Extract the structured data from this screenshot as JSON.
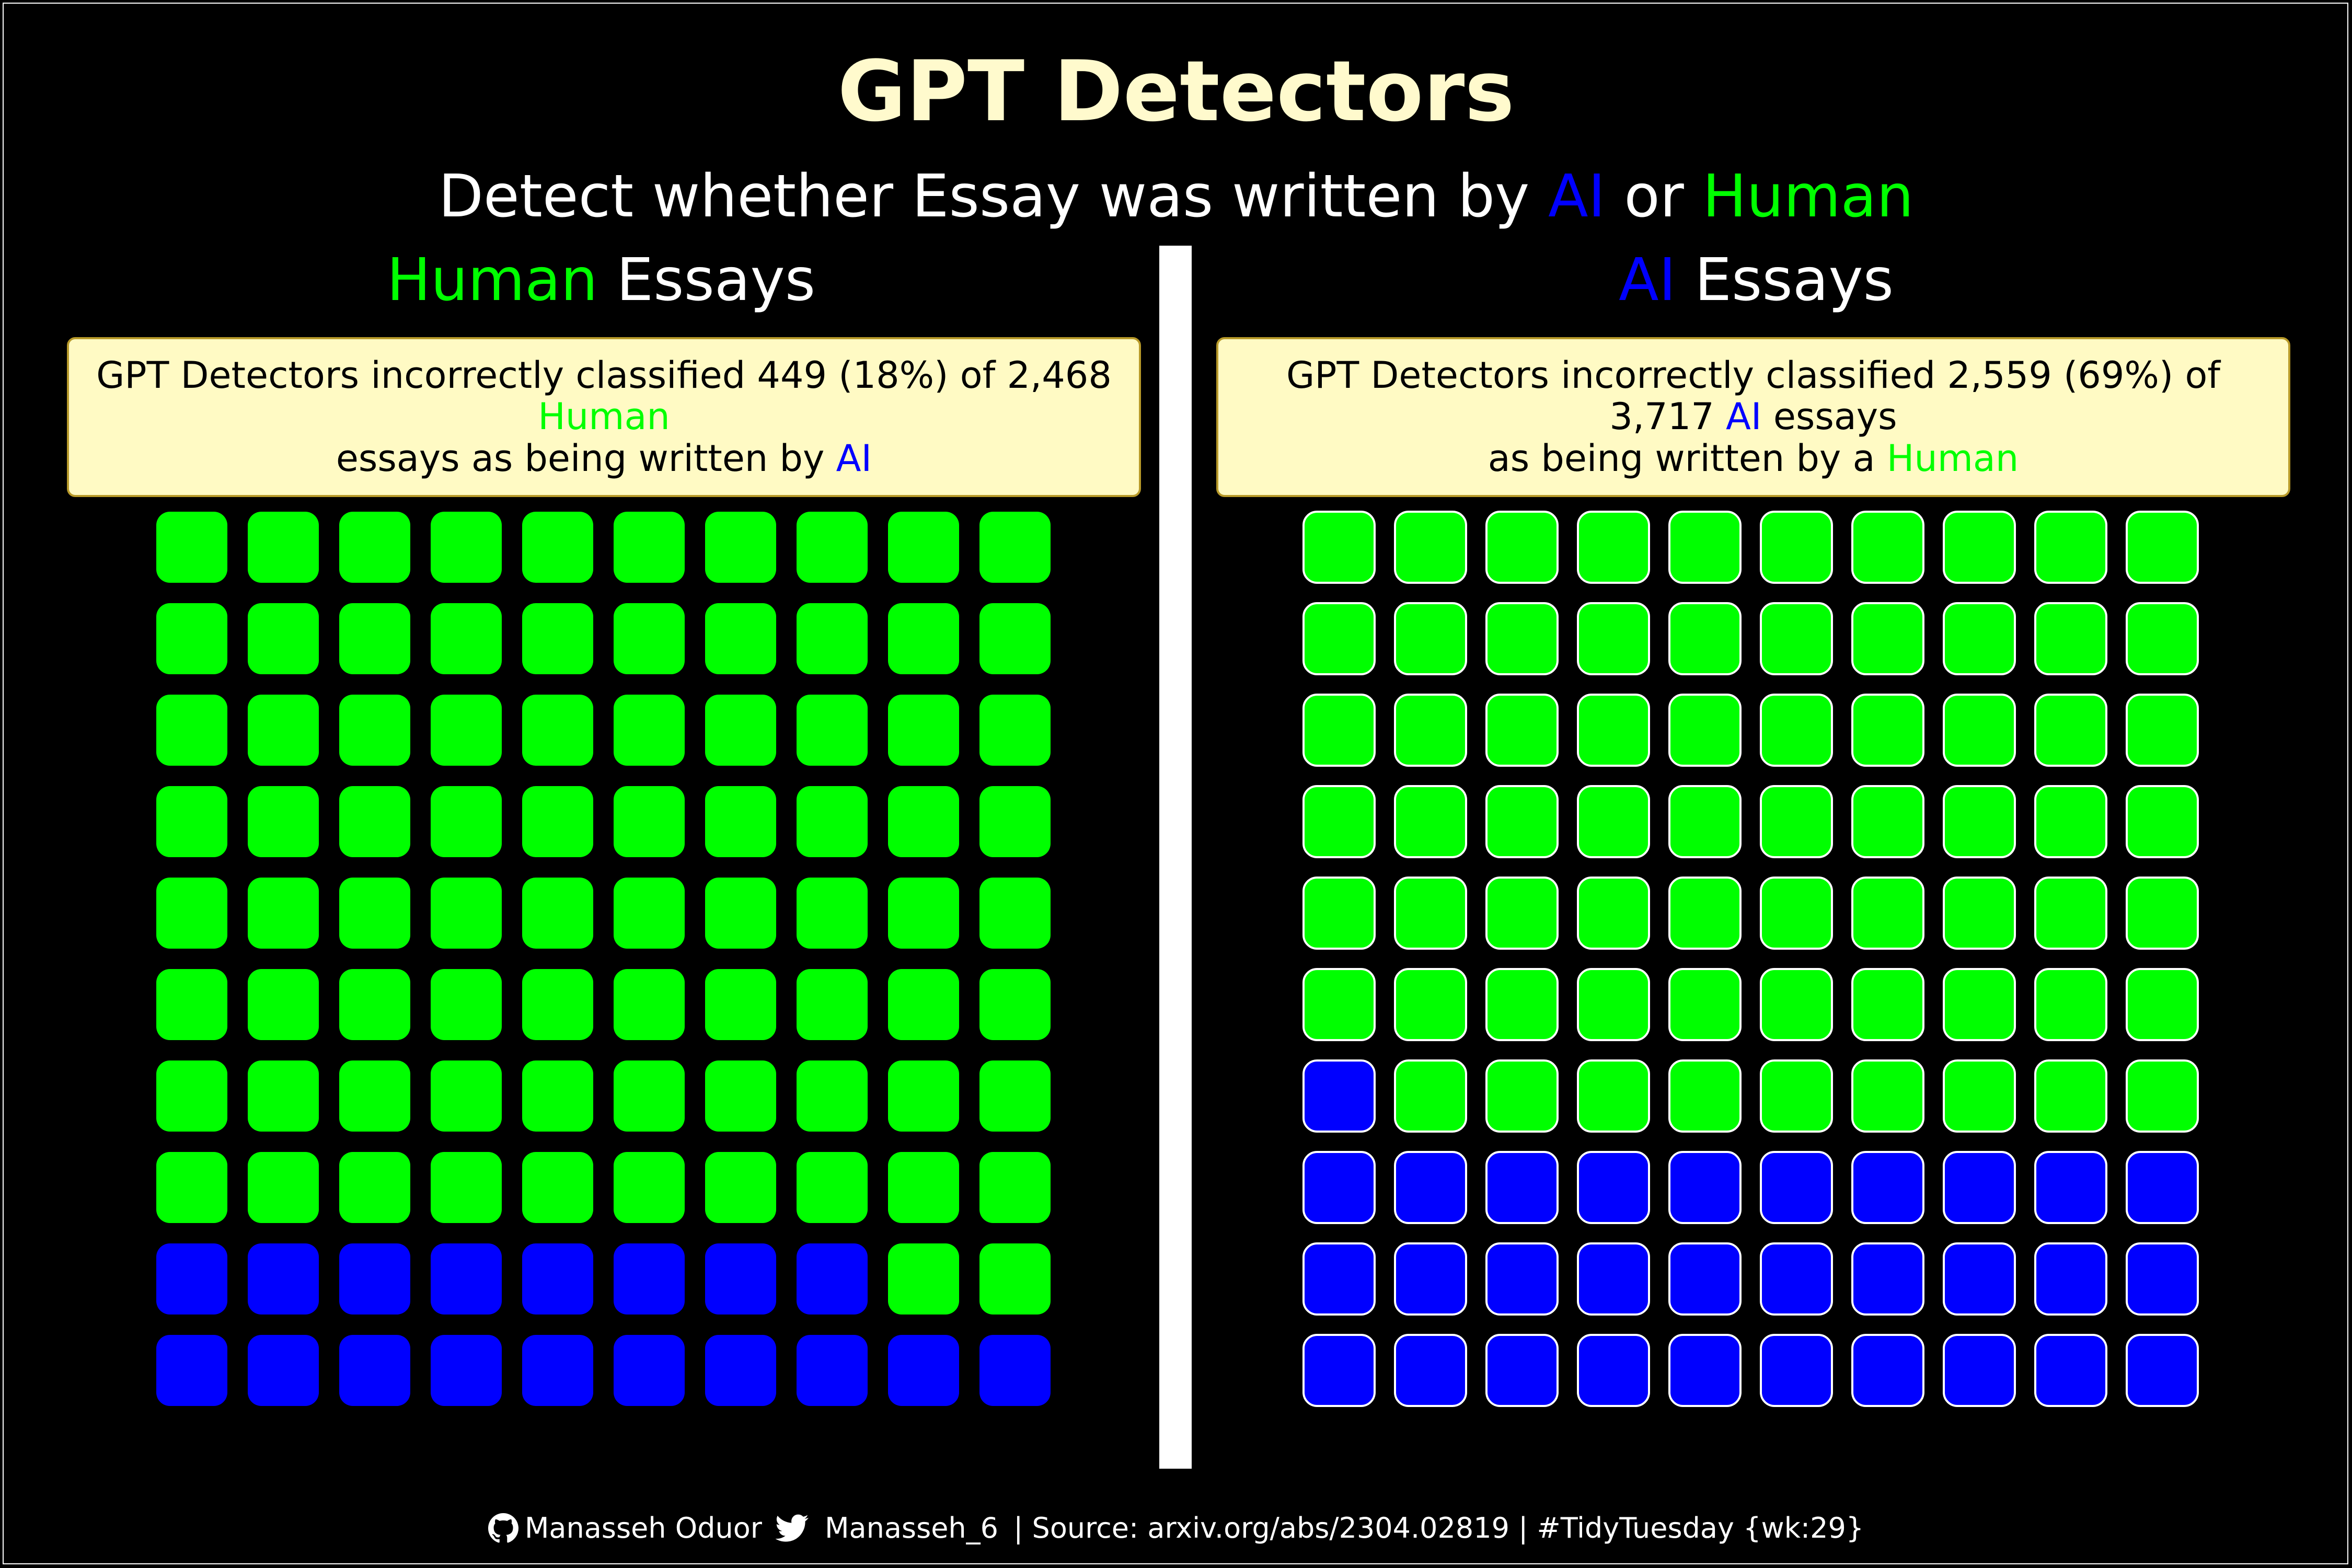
{
  "colors": {
    "background": "#000000",
    "title": "#fffacd",
    "note_fill": "#fffac4",
    "human": "#00ff00",
    "ai": "#0000ff",
    "text": "#ffffff"
  },
  "title": "GPT Detectors",
  "subtitle": {
    "part1": "Detect whether Essay was written by ",
    "ai": "AI",
    "part2": " or ",
    "human": "Human"
  },
  "panels": [
    {
      "title_colored": "Human",
      "title_rest": " Essays",
      "note": {
        "line1_prefix": "GPT Detectors incorrectly classified 449 (18%) of 2,468 ",
        "line1_highlight": "Human",
        "line2_prefix": "essays as being written by ",
        "line2_highlight": "AI",
        "line2_suffix": ""
      }
    },
    {
      "title_colored": "AI",
      "title_rest": " Essays",
      "note": {
        "line1_prefix": "GPT Detectors incorrectly classified 2,559 (69%) of 3,717 ",
        "line1_highlight": "AI",
        "line1_suffix": " essays",
        "line2_prefix": "as being written by a ",
        "line2_highlight": "Human"
      }
    }
  ],
  "chart_data": [
    {
      "type": "waffle",
      "title": "Human Essays",
      "rows": 10,
      "cols": 10,
      "categories": [
        "Human",
        "AI"
      ],
      "values": [
        82,
        18
      ],
      "series": [
        {
          "name": "Human",
          "value": 82,
          "color": "#00ff00"
        },
        {
          "name": "AI",
          "value": 18,
          "color": "#0000ff"
        }
      ],
      "fill_order": "bottom-up, left-to-right, AI first",
      "tile_border": false
    },
    {
      "type": "waffle",
      "title": "AI Essays",
      "rows": 10,
      "cols": 10,
      "categories": [
        "AI",
        "Human"
      ],
      "values": [
        31,
        69
      ],
      "series": [
        {
          "name": "AI",
          "value": 31,
          "color": "#0000ff"
        },
        {
          "name": "Human",
          "value": 69,
          "color": "#00ff00"
        }
      ],
      "fill_order": "bottom-up, left-to-right, AI first",
      "tile_border": true
    }
  ],
  "footer": {
    "author": "Manasseh Oduor",
    "twitter": "Manasseh_6",
    "source": " | Source: arxiv.org/abs/2304.02819 | #TidyTuesday {wk:29}",
    "icons": [
      "github-icon",
      "twitter-icon"
    ]
  }
}
